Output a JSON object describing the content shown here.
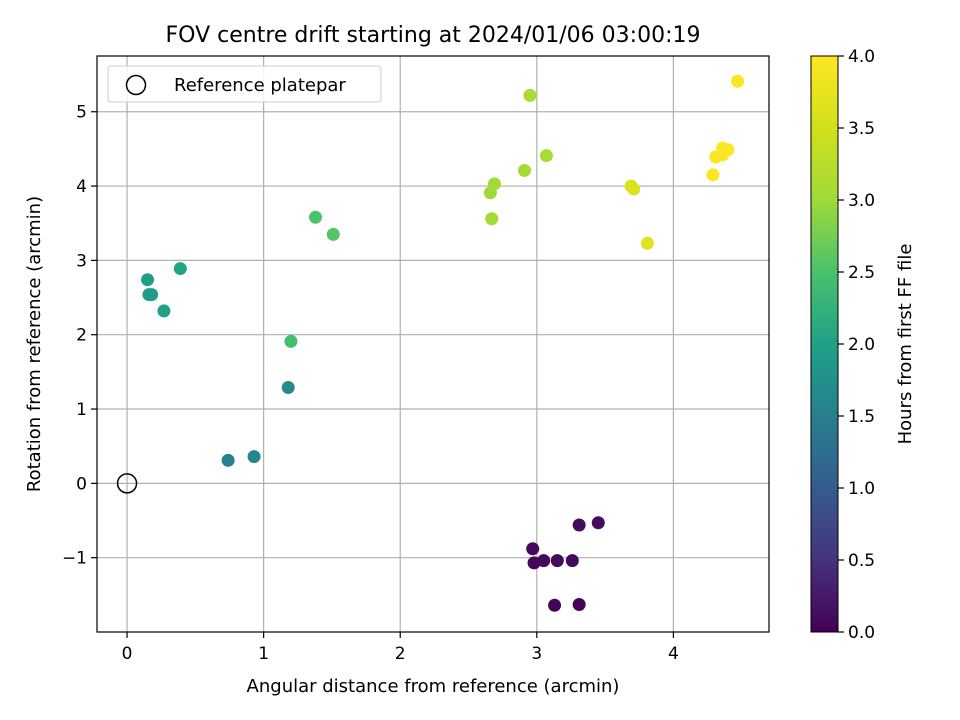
{
  "chart_data": {
    "type": "scatter",
    "title": "FOV centre drift starting at 2024/01/06 03:00:19",
    "xlabel": "Angular distance from reference (arcmin)",
    "ylabel": "Rotation from reference (arcmin)",
    "xlim": [
      -0.22,
      4.7
    ],
    "ylim": [
      -2.0,
      5.75
    ],
    "xticks": [
      0,
      1,
      2,
      3,
      4
    ],
    "yticks": [
      -1,
      0,
      1,
      2,
      3,
      4,
      5
    ],
    "grid": true,
    "legend": {
      "placement": "top-left",
      "entries": [
        "Reference platepar"
      ]
    },
    "reference_point": {
      "x": 0,
      "y": 0
    },
    "colorbar": {
      "label": "Hours from first FF file",
      "colormap": "viridis",
      "range": [
        0.0,
        4.0
      ],
      "ticks": [
        "0.0",
        "0.5",
        "1.0",
        "1.5",
        "2.0",
        "2.5",
        "3.0",
        "3.5",
        "4.0"
      ]
    },
    "points": [
      {
        "x": 3.31,
        "y": -1.63,
        "c": 0.02
      },
      {
        "x": 3.13,
        "y": -1.64,
        "c": 0.03
      },
      {
        "x": 2.98,
        "y": -1.07,
        "c": 0.05
      },
      {
        "x": 3.05,
        "y": -1.04,
        "c": 0.06
      },
      {
        "x": 2.97,
        "y": -0.88,
        "c": 0.08
      },
      {
        "x": 3.15,
        "y": -1.04,
        "c": 0.09
      },
      {
        "x": 3.26,
        "y": -1.04,
        "c": 0.1
      },
      {
        "x": 3.31,
        "y": -0.56,
        "c": 0.11
      },
      {
        "x": 3.45,
        "y": -0.53,
        "c": 0.12
      },
      {
        "x": 0.74,
        "y": 0.31,
        "c": 1.55
      },
      {
        "x": 0.93,
        "y": 0.36,
        "c": 1.6
      },
      {
        "x": 1.18,
        "y": 1.29,
        "c": 1.68
      },
      {
        "x": 0.16,
        "y": 2.54,
        "c": 1.92
      },
      {
        "x": 0.18,
        "y": 2.54,
        "c": 1.93
      },
      {
        "x": 0.15,
        "y": 2.74,
        "c": 1.95
      },
      {
        "x": 0.27,
        "y": 2.32,
        "c": 1.98
      },
      {
        "x": 0.39,
        "y": 2.89,
        "c": 2.05
      },
      {
        "x": 1.2,
        "y": 1.91,
        "c": 2.45
      },
      {
        "x": 1.38,
        "y": 3.58,
        "c": 2.5
      },
      {
        "x": 1.51,
        "y": 3.35,
        "c": 2.55
      },
      {
        "x": 2.66,
        "y": 3.91,
        "c": 3.0
      },
      {
        "x": 2.69,
        "y": 4.03,
        "c": 3.02
      },
      {
        "x": 2.67,
        "y": 3.56,
        "c": 3.03
      },
      {
        "x": 2.91,
        "y": 4.21,
        "c": 3.05
      },
      {
        "x": 3.07,
        "y": 4.41,
        "c": 3.07
      },
      {
        "x": 2.95,
        "y": 5.22,
        "c": 3.1
      },
      {
        "x": 3.69,
        "y": 4.0,
        "c": 3.6
      },
      {
        "x": 3.71,
        "y": 3.96,
        "c": 3.62
      },
      {
        "x": 3.81,
        "y": 3.23,
        "c": 3.65
      },
      {
        "x": 4.29,
        "y": 4.15,
        "c": 3.95
      },
      {
        "x": 4.31,
        "y": 4.39,
        "c": 3.96
      },
      {
        "x": 4.36,
        "y": 4.42,
        "c": 3.97
      },
      {
        "x": 4.36,
        "y": 4.51,
        "c": 3.98
      },
      {
        "x": 4.4,
        "y": 4.49,
        "c": 3.99
      },
      {
        "x": 4.47,
        "y": 5.41,
        "c": 4.0
      }
    ]
  }
}
